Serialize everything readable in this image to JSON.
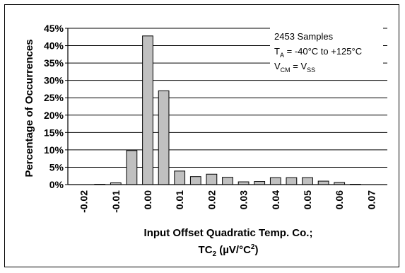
{
  "chart_data": {
    "type": "bar",
    "title": "",
    "ylabel": "Percentage of Occurrences",
    "xlabel_line1": "Input Offset Quadratic Temp. Co.;",
    "xlabel_line2_main": "TC",
    "xlabel_line2_sub": "2",
    "xlabel_line2_rest": " (µV/°C",
    "xlabel_line2_sup": "2",
    "xlabel_line2_end": ")",
    "ylim": [
      0,
      45
    ],
    "y_ticks": [
      0,
      5,
      10,
      15,
      20,
      25,
      30,
      35,
      40,
      45
    ],
    "y_tick_labels": [
      "0%",
      "5%",
      "10%",
      "15%",
      "20%",
      "25%",
      "30%",
      "35%",
      "40%",
      "45%"
    ],
    "x_tick_labels": [
      "-0.02",
      "-0.01",
      "0.00",
      "0.01",
      "0.02",
      "0.03",
      "0.04",
      "0.05",
      "0.06",
      "0.07"
    ],
    "bin_centers": [
      -0.02,
      -0.015,
      -0.01,
      -0.005,
      0.0,
      0.005,
      0.01,
      0.015,
      0.02,
      0.025,
      0.03,
      0.035,
      0.04,
      0.045,
      0.05,
      0.055,
      0.06,
      0.065,
      0.07
    ],
    "values": [
      0.0,
      0.1,
      0.5,
      9.8,
      42.8,
      27.0,
      3.9,
      2.3,
      3.0,
      2.1,
      0.8,
      0.9,
      2.0,
      2.0,
      2.0,
      1.0,
      0.6,
      0.1,
      0.0
    ],
    "grid": true,
    "bar_color": "#c0c0c0",
    "annotation": {
      "line1": "2453 Samples",
      "line2_main": "T",
      "line2_sub": "A",
      "line2_rest": " = -40°C to +125°C",
      "line3_main": "V",
      "line3_sub": "CM",
      "line3_mid": " = V",
      "line3_sub2": "SS"
    }
  }
}
